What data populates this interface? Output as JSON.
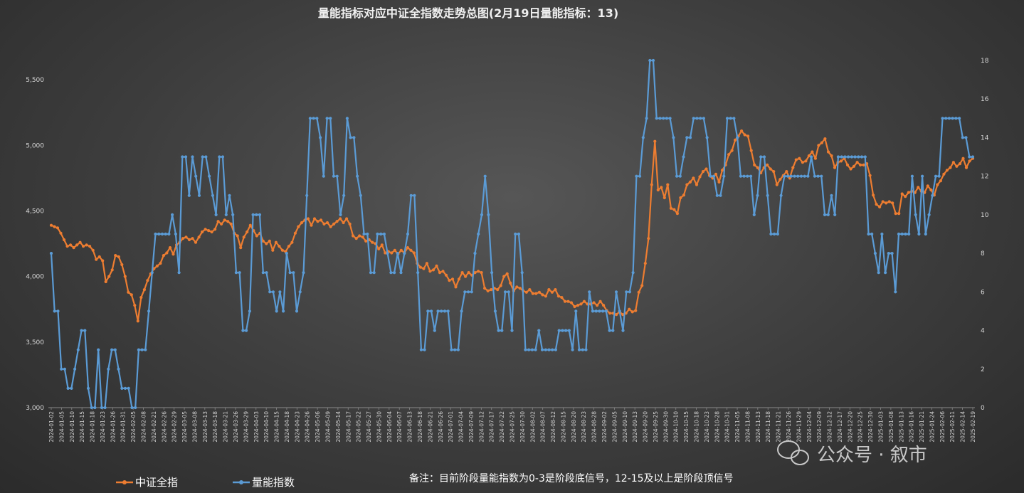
{
  "chart_data": {
    "type": "line",
    "title": "量能指标对应中证全指数走势总图(2月19日量能指标：13)",
    "note": "备注：目前阶段量能指数为0-3是阶段底信号，12-15及以上是阶段顶信号",
    "watermark": "公众号 · 叙市",
    "left_axis": {
      "ylim": [
        3000,
        5750
      ],
      "ticks": [
        "3,000",
        "3,500",
        "4,000",
        "4,500",
        "5,000",
        "5,500"
      ]
    },
    "right_axis": {
      "ylim": [
        0,
        18.7
      ],
      "ticks": [
        "0",
        "2",
        "4",
        "6",
        "8",
        "10",
        "12",
        "14",
        "16",
        "18"
      ]
    },
    "x_tick_labels": [
      "2024-01-02",
      "2024-01-05",
      "2024-01-10",
      "2024-01-15",
      "2024-01-18",
      "2024-01-23",
      "2024-01-26",
      "2024-01-31",
      "2024-02-05",
      "2024-02-08",
      "2024-02-21",
      "2024-02-26",
      "2024-02-29",
      "2024-03-05",
      "2024-03-08",
      "2024-03-13",
      "2024-03-18",
      "2024-03-21",
      "2024-03-26",
      "2024-03-29",
      "2024-04-03",
      "2024-04-10",
      "2024-04-15",
      "2024-04-18",
      "2024-04-23",
      "2024-04-26",
      "2024-05-06",
      "2024-05-09",
      "2024-05-14",
      "2024-05-17",
      "2024-05-22",
      "2024-05-27",
      "2024-05-30",
      "2024-06-04",
      "2024-06-07",
      "2024-06-13",
      "2024-06-18",
      "2024-06-21",
      "2024-06-26",
      "2024-07-01",
      "2024-07-04",
      "2024-07-09",
      "2024-07-12",
      "2024-07-17",
      "2024-07-22",
      "2024-07-25",
      "2024-07-30",
      "2024-08-02",
      "2024-08-07",
      "2024-08-12",
      "2024-08-15",
      "2024-08-20",
      "2024-08-23",
      "2024-08-28",
      "2024-09-02",
      "2024-09-05",
      "2024-09-10",
      "2024-09-13",
      "2024-09-20",
      "2024-09-25",
      "2024-09-30",
      "2024-10-10",
      "2024-10-15",
      "2024-10-18",
      "2024-10-23",
      "2024-10-28",
      "2024-10-31",
      "2024-11-05",
      "2024-11-08",
      "2024-11-13",
      "2024-11-18",
      "2024-11-21",
      "2024-11-26",
      "2024-11-29",
      "2024-12-04",
      "2024-12-09",
      "2024-12-12",
      "2024-12-17",
      "2024-12-20",
      "2024-12-25",
      "2024-12-30",
      "2025-01-03",
      "2025-01-08",
      "2025-01-13",
      "2025-01-16",
      "2025-01-21",
      "2025-01-24",
      "2025-02-06",
      "2025-02-11",
      "2025-02-14",
      "2025-02-19"
    ],
    "series": [
      {
        "name": "中证全指",
        "axis": "left",
        "color": "#ed7d31",
        "values": [
          4390,
          4380,
          4370,
          4330,
          4280,
          4230,
          4240,
          4220,
          4240,
          4260,
          4230,
          4240,
          4230,
          4200,
          4130,
          4150,
          4120,
          3960,
          4000,
          4050,
          4160,
          4150,
          4090,
          4000,
          3880,
          3860,
          3780,
          3660,
          3840,
          3900,
          3970,
          4020,
          4060,
          4080,
          4100,
          4160,
          4180,
          4220,
          4170,
          4240,
          4260,
          4290,
          4300,
          4280,
          4290,
          4260,
          4300,
          4340,
          4360,
          4350,
          4340,
          4360,
          4420,
          4400,
          4430,
          4420,
          4400,
          4330,
          4310,
          4220,
          4300,
          4340,
          4390,
          4350,
          4310,
          4330,
          4270,
          4250,
          4270,
          4200,
          4260,
          4230,
          4200,
          4190,
          4230,
          4260,
          4330,
          4380,
          4410,
          4430,
          4440,
          4390,
          4440,
          4420,
          4430,
          4400,
          4410,
          4380,
          4400,
          4420,
          4440,
          4410,
          4440,
          4400,
          4310,
          4290,
          4310,
          4300,
          4270,
          4280,
          4260,
          4250,
          4210,
          4240,
          4180,
          4190,
          4180,
          4200,
          4170,
          4200,
          4180,
          4220,
          4200,
          4180,
          4100,
          4070,
          4060,
          4100,
          4040,
          4050,
          4080,
          4030,
          4040,
          4010,
          3970,
          3980,
          3920,
          3980,
          4030,
          4000,
          4030,
          4010,
          4030,
          4040,
          4030,
          3910,
          3890,
          3900,
          3910,
          3900,
          3930,
          4000,
          4020,
          3950,
          3890,
          3920,
          3910,
          3890,
          3880,
          3900,
          3870,
          3870,
          3880,
          3860,
          3850,
          3900,
          3880,
          3900,
          3850,
          3840,
          3810,
          3810,
          3800,
          3770,
          3780,
          3790,
          3810,
          3790,
          3790,
          3800,
          3780,
          3810,
          3780,
          3740,
          3720,
          3720,
          3710,
          3730,
          3710,
          3720,
          3750,
          3730,
          3740,
          3880,
          3930,
          4100,
          4290,
          4700,
          5030,
          4660,
          4680,
          4600,
          4700,
          4520,
          4510,
          4480,
          4600,
          4620,
          4700,
          4720,
          4750,
          4700,
          4760,
          4800,
          4820,
          4770,
          4750,
          4780,
          4720,
          4810,
          4850,
          4930,
          4960,
          5040,
          5070,
          5110,
          5080,
          5070,
          4960,
          4850,
          4830,
          4790,
          4830,
          4850,
          4820,
          4800,
          4700,
          4740,
          4770,
          4800,
          4750,
          4830,
          4890,
          4900,
          4870,
          4880,
          4920,
          4950,
          4900,
          5000,
          5020,
          5050,
          4950,
          4920,
          4830,
          4870,
          4880,
          4900,
          4850,
          4820,
          4840,
          4870,
          4850,
          4850,
          4860,
          4770,
          4620,
          4550,
          4530,
          4570,
          4560,
          4570,
          4560,
          4480,
          4480,
          4630,
          4610,
          4640,
          4650,
          4640,
          4680,
          4650,
          4640,
          4690,
          4660,
          4620,
          4700,
          4730,
          4780,
          4810,
          4830,
          4870,
          4840,
          4860,
          4900,
          4830,
          4880,
          4900
        ]
      },
      {
        "name": "量能指数",
        "axis": "right",
        "color": "#5b9bd5",
        "values": [
          8,
          5,
          5,
          2,
          2,
          1,
          1,
          2,
          3,
          4,
          4,
          1,
          0,
          0,
          3,
          0,
          0,
          2,
          3,
          3,
          2,
          1,
          1,
          1,
          0,
          0,
          3,
          3,
          3,
          5,
          7,
          9,
          9,
          9,
          9,
          9,
          10,
          9,
          7,
          13,
          13,
          11,
          13,
          12,
          11,
          13,
          13,
          12,
          11,
          10,
          13,
          13,
          10,
          11,
          10,
          7,
          7,
          4,
          4,
          5,
          10,
          10,
          10,
          7,
          7,
          6,
          6,
          5,
          6,
          5,
          8,
          7,
          7,
          5,
          6,
          7,
          11,
          15,
          15,
          15,
          14,
          12,
          15,
          15,
          12,
          12,
          10,
          11,
          15,
          14,
          14,
          12,
          11,
          9,
          9,
          7,
          7,
          9,
          9,
          9,
          8,
          7,
          7,
          8,
          7,
          8,
          9,
          11,
          11,
          7,
          3,
          3,
          5,
          5,
          4,
          5,
          5,
          5,
          5,
          3,
          3,
          3,
          5,
          6,
          6,
          6,
          8,
          9,
          10,
          12,
          10,
          7,
          5,
          4,
          4,
          6,
          6,
          4,
          9,
          9,
          7,
          3,
          3,
          3,
          3,
          4,
          3,
          3,
          3,
          3,
          3,
          4,
          4,
          4,
          4,
          3,
          5,
          3,
          3,
          3,
          6,
          5,
          5,
          5,
          5,
          5,
          4,
          4,
          6,
          5,
          4,
          6,
          6,
          7,
          12,
          12,
          14,
          15,
          18,
          18,
          15,
          15,
          15,
          15,
          15,
          14,
          12,
          12,
          13,
          14,
          14,
          15,
          15,
          15,
          15,
          14,
          12,
          12,
          11,
          11,
          12,
          15,
          15,
          15,
          14,
          12,
          12,
          12,
          12,
          10,
          11,
          13,
          13,
          11,
          9,
          9,
          9,
          11,
          12,
          12,
          12,
          12,
          12,
          12,
          12,
          12,
          13,
          12,
          12,
          12,
          10,
          10,
          11,
          10,
          13,
          13,
          13,
          13,
          13,
          13,
          13,
          13,
          13,
          9,
          9,
          8,
          7,
          9,
          7,
          8,
          8,
          6,
          9,
          9,
          9,
          9,
          12,
          10,
          9,
          12,
          9,
          10,
          11,
          12,
          12,
          15,
          15,
          15,
          15,
          15,
          15,
          14,
          14,
          13,
          13
        ]
      }
    ],
    "legend": [
      "中证全指",
      "量能指数"
    ],
    "legend_position": "bottom-left"
  }
}
